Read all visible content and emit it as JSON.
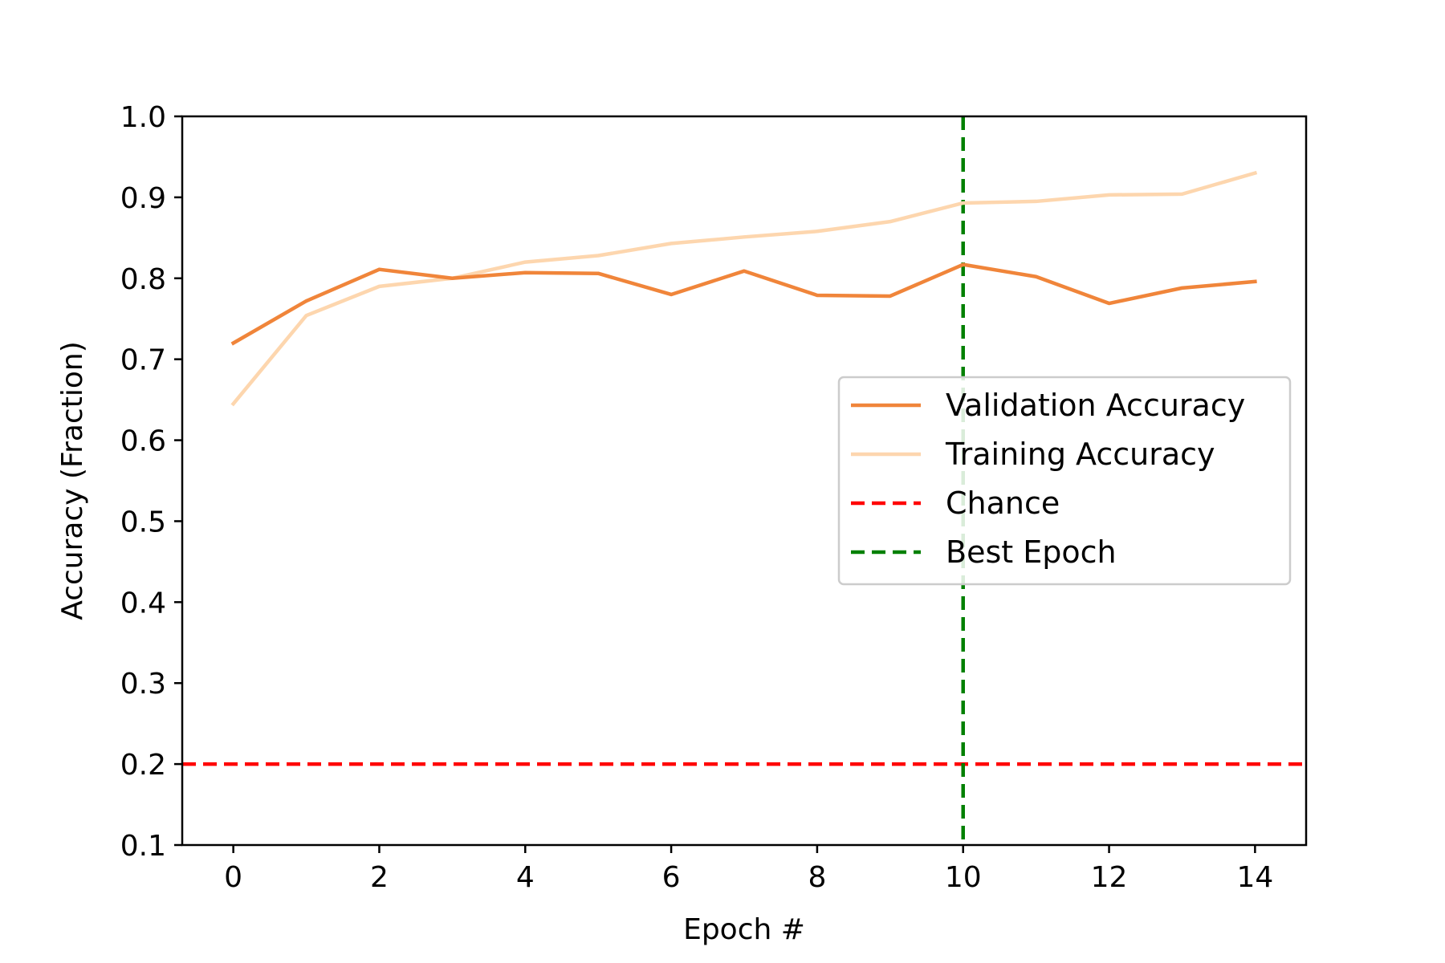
{
  "chart_data": {
    "type": "line",
    "title": "",
    "xlabel": "Epoch #",
    "ylabel": "Accuracy (Fraction)",
    "xlim": [
      -0.7,
      14.7
    ],
    "ylim": [
      0.1,
      1.0
    ],
    "xticks": [
      0,
      2,
      4,
      6,
      8,
      10,
      12,
      14
    ],
    "xtick_labels": [
      "0",
      "2",
      "4",
      "6",
      "8",
      "10",
      "12",
      "14"
    ],
    "yticks": [
      0.1,
      0.2,
      0.3,
      0.4,
      0.5,
      0.6,
      0.7,
      0.8,
      0.9,
      1.0
    ],
    "ytick_labels": [
      "0.1",
      "0.2",
      "0.3",
      "0.4",
      "0.5",
      "0.6",
      "0.7",
      "0.8",
      "0.9",
      "1.0"
    ],
    "grid": false,
    "legend_position": "center-right",
    "x": [
      0,
      1,
      2,
      3,
      4,
      5,
      6,
      7,
      8,
      9,
      10,
      11,
      12,
      13,
      14
    ],
    "series": [
      {
        "name": "Validation Accuracy",
        "color": "#f0853a",
        "style": "solid",
        "values": [
          0.72,
          0.772,
          0.811,
          0.8,
          0.807,
          0.806,
          0.78,
          0.809,
          0.779,
          0.778,
          0.817,
          0.802,
          0.769,
          0.788,
          0.796
        ]
      },
      {
        "name": "Training Accuracy",
        "color": "#fdd6ae",
        "style": "solid",
        "values": [
          0.645,
          0.754,
          0.79,
          0.8,
          0.82,
          0.828,
          0.843,
          0.851,
          0.858,
          0.87,
          0.893,
          0.895,
          0.903,
          0.904,
          0.93
        ]
      }
    ],
    "reference_lines": [
      {
        "name": "Chance",
        "orientation": "horizontal",
        "value": 0.2,
        "color": "#ff0000",
        "style": "dashed"
      },
      {
        "name": "Best Epoch",
        "orientation": "vertical",
        "value": 10,
        "color": "#008000",
        "style": "dashed"
      }
    ]
  }
}
